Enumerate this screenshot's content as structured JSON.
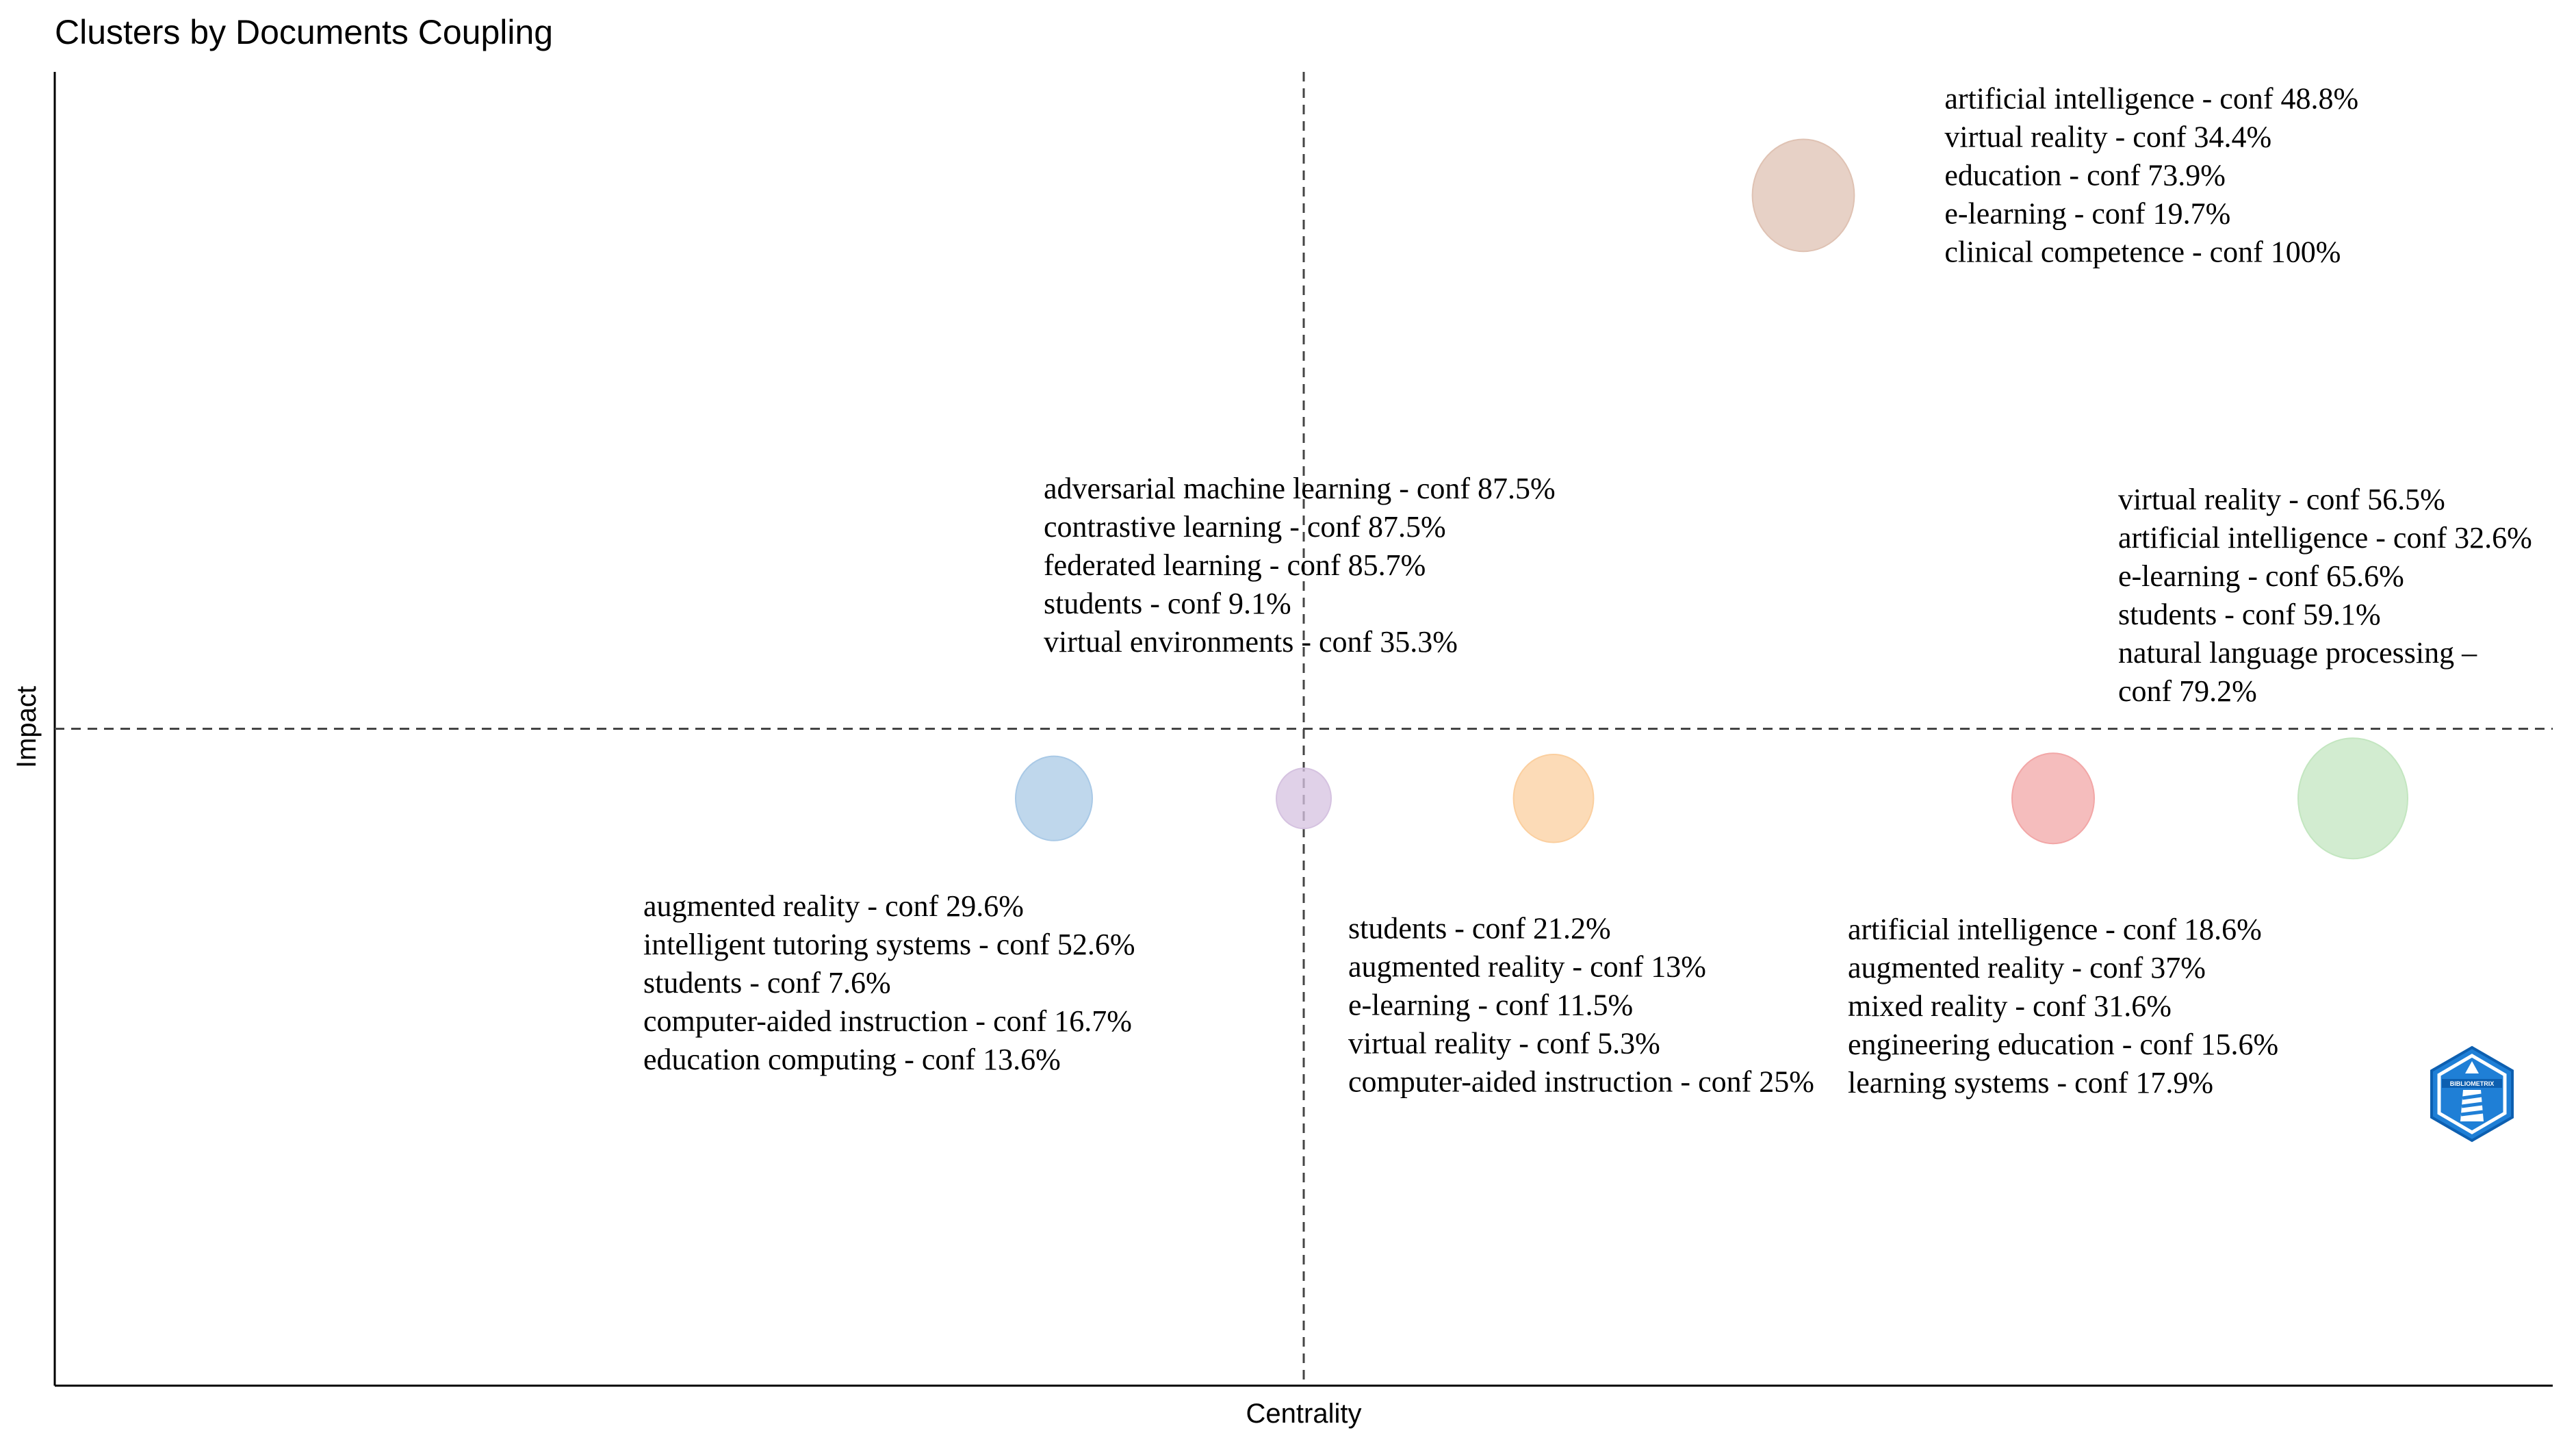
{
  "chart_data": {
    "type": "scatter",
    "title": "Clusters by Documents Coupling",
    "xlabel": "Centrality",
    "ylabel": "Impact",
    "xlim": [
      0,
      1
    ],
    "ylim": [
      0,
      1
    ],
    "x_threshold": 0.5,
    "y_threshold": 0.5,
    "grid": false,
    "clusters": [
      {
        "name": "cluster-1",
        "x": 0.4,
        "y": 0.447,
        "size": 0.45,
        "color": "#a9c9e6",
        "label_anchor": "below-left",
        "labels": [
          "augmented reality - conf 29.6%",
          "intelligent tutoring systems - conf 52.6%",
          "students - conf 7.6%",
          "computer-aided instruction - conf 16.7%",
          "education computing - conf 13.6%"
        ]
      },
      {
        "name": "cluster-2",
        "x": 0.5,
        "y": 0.447,
        "size": 0.25,
        "color": "#d5c2e0",
        "label_anchor": "above",
        "labels": [
          "adversarial machine learning - conf 87.5%",
          "contrastive learning - conf 87.5%",
          "federated learning - conf 85.7%",
          "students - conf 9.1%",
          "virtual environments - conf 35.3%"
        ]
      },
      {
        "name": "cluster-3",
        "x": 0.6,
        "y": 0.447,
        "size": 0.48,
        "color": "#fbcf9f",
        "label_anchor": "below",
        "labels": [
          "students - conf 21.2%",
          "augmented reality - conf 13%",
          "e-learning - conf 11.5%",
          "virtual reality - conf 5.3%",
          "computer-aided instruction - conf 25%"
        ]
      },
      {
        "name": "cluster-4",
        "x": 0.7,
        "y": 0.906,
        "size": 0.68,
        "color": "#dfc2b3",
        "label_anchor": "right",
        "labels": [
          "artificial intelligence - conf 48.8%",
          "virtual reality - conf 34.4%",
          "education - conf 73.9%",
          "e-learning - conf 19.7%",
          "clinical competence - conf 100%"
        ]
      },
      {
        "name": "cluster-5",
        "x": 0.8,
        "y": 0.447,
        "size": 0.5,
        "color": "#f2a7a7",
        "label_anchor": "below",
        "labels": [
          "artificial intelligence - conf 18.6%",
          "augmented reality - conf 37%",
          "mixed reality - conf 31.6%",
          "engineering education - conf 15.6%",
          "learning systems - conf 17.9%"
        ]
      },
      {
        "name": "cluster-6",
        "x": 0.92,
        "y": 0.447,
        "size": 0.75,
        "color": "#c3e6c0",
        "label_anchor": "above-left",
        "labels": [
          "virtual reality - conf 56.5%",
          "artificial intelligence - conf 32.6%",
          "e-learning - conf 65.6%",
          "students - conf 59.1%",
          "natural language processing –",
          " conf 79.2%"
        ]
      }
    ]
  },
  "logo": {
    "color": "#1f7fd6",
    "text": "BIBLIOMETRIX"
  }
}
